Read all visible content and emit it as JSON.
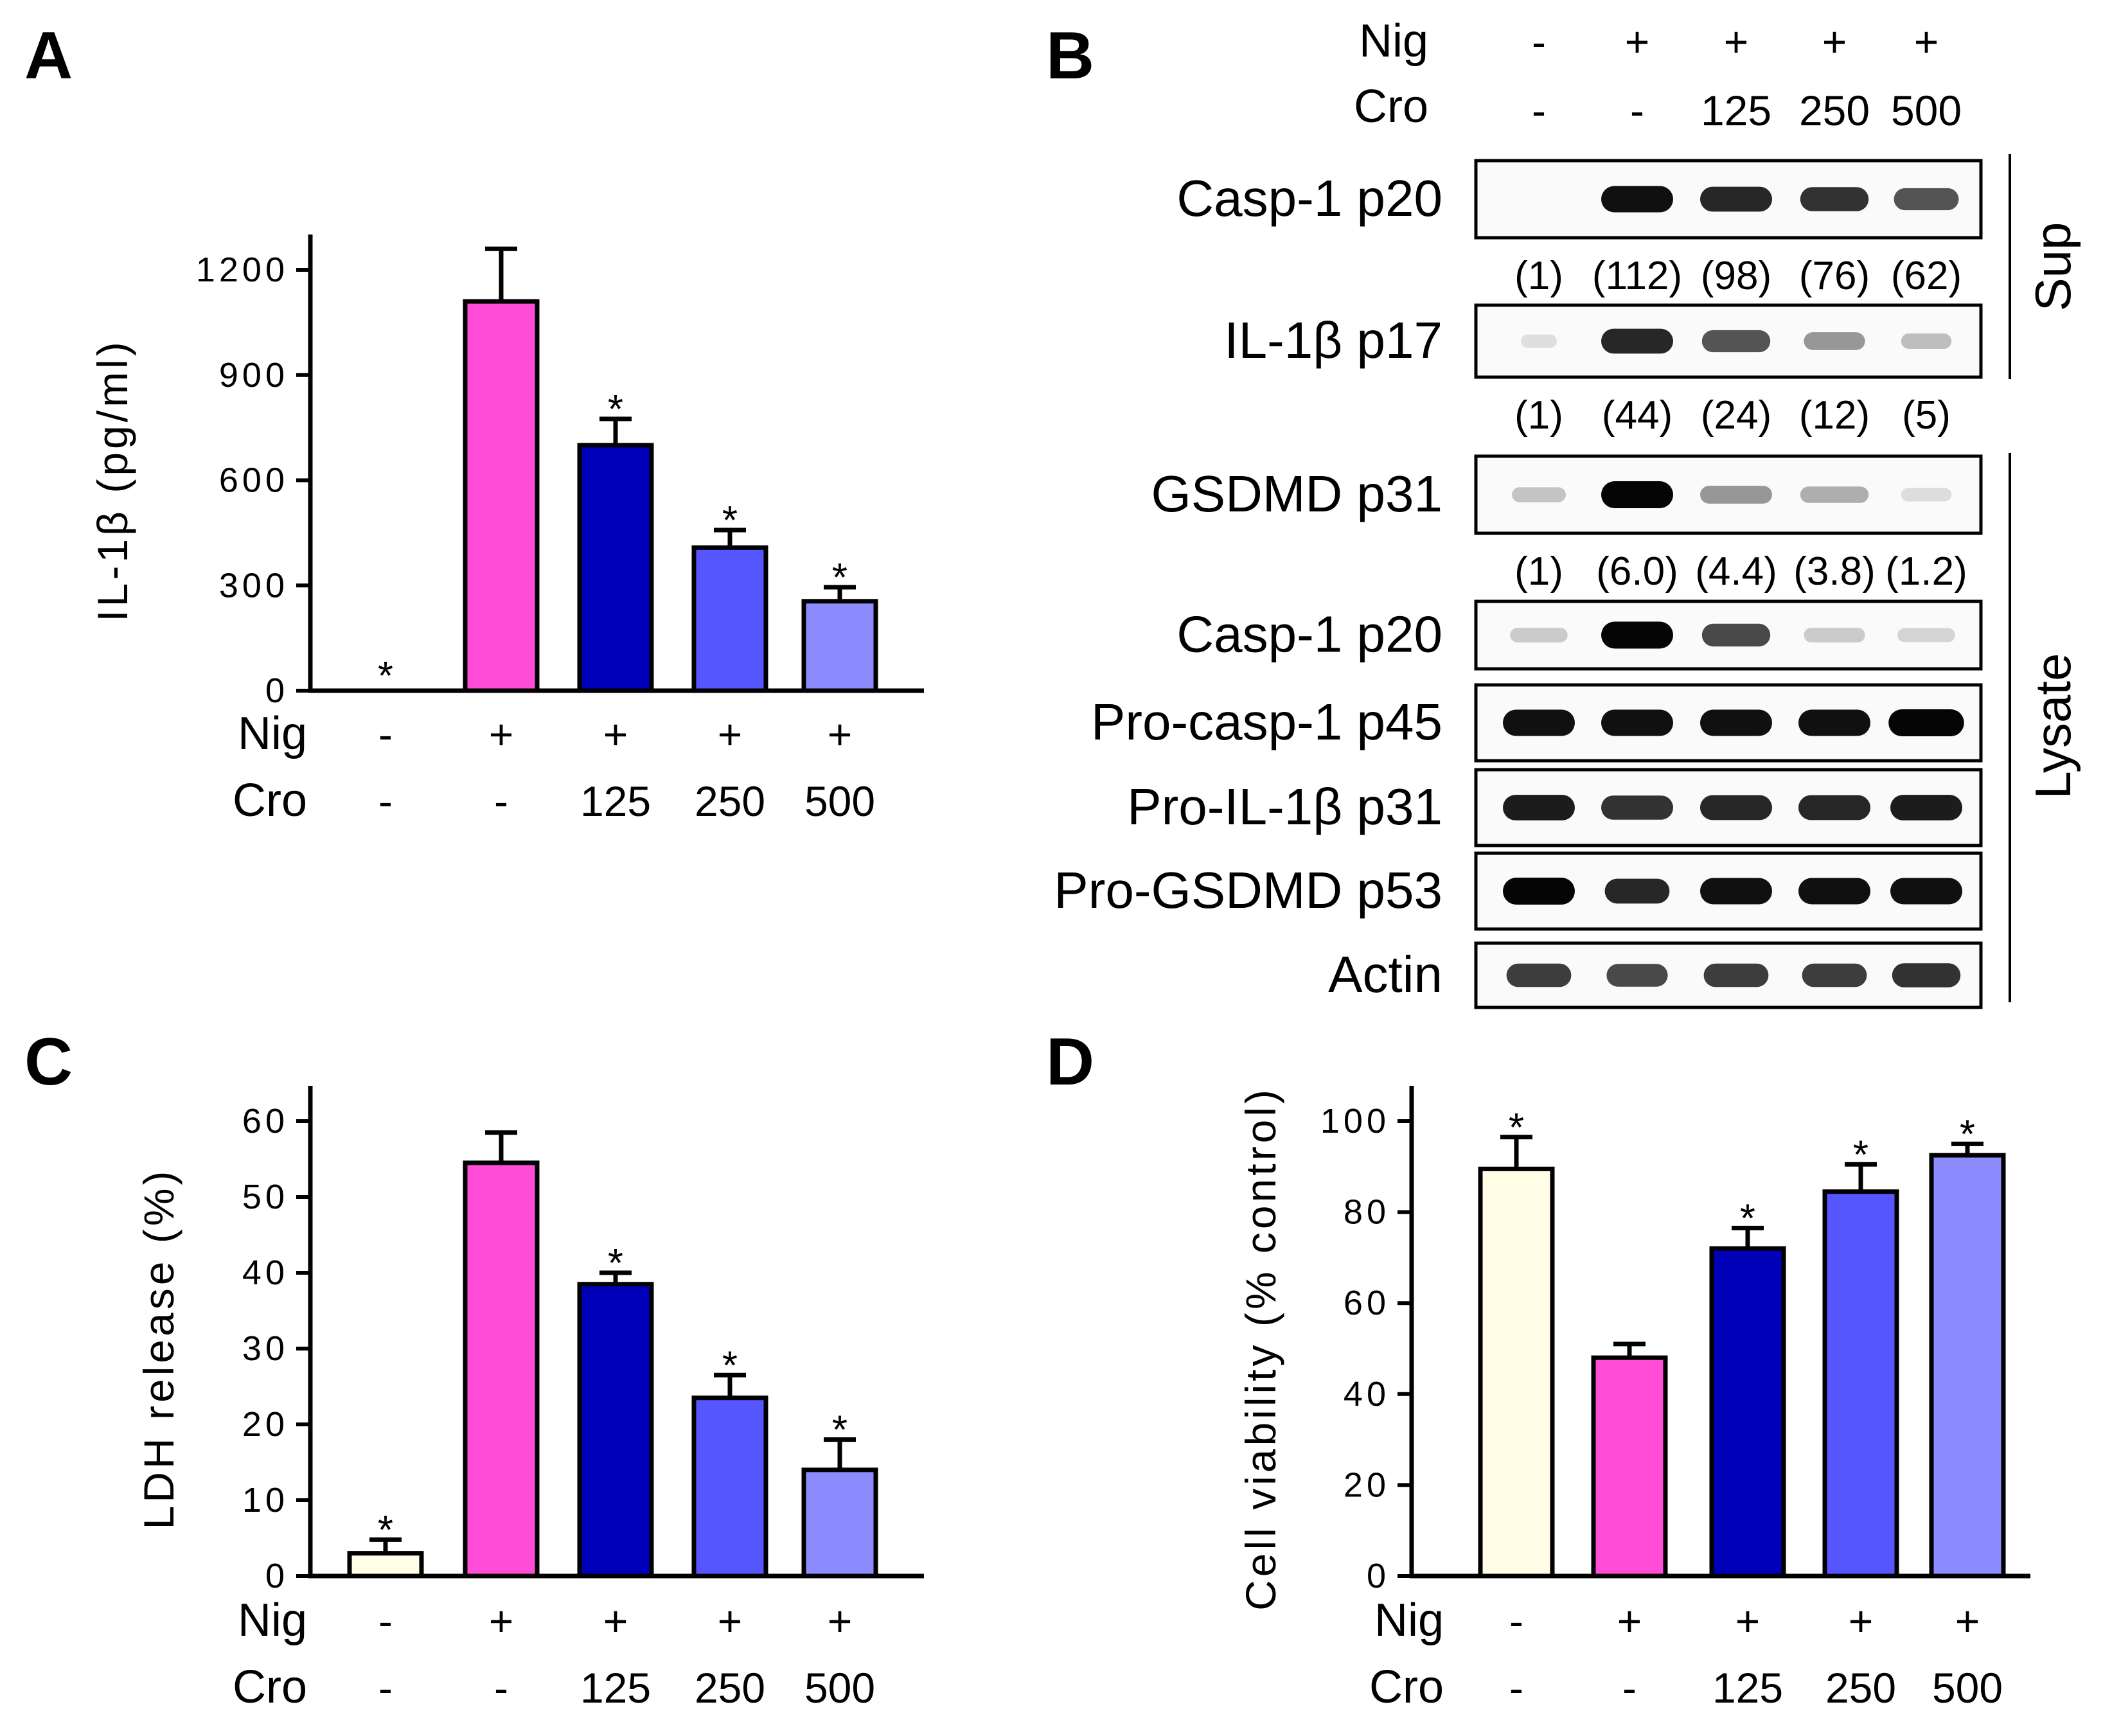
{
  "panel_labels": {
    "a": "A",
    "b": "B",
    "c": "C",
    "d": "D"
  },
  "treatments": {
    "nig_label": "Nig",
    "cro_label": "Cro",
    "nig": [
      "-",
      "+",
      "+",
      "+",
      "+"
    ],
    "cro": [
      "-",
      "-",
      "125",
      "250",
      "500"
    ]
  },
  "bar_colors": [
    "#fffde6",
    "#ff4dd8",
    "#0000b8",
    "#5656ff",
    "#8c8cff"
  ],
  "significance_mark": "*",
  "chart_data": [
    {
      "panel": "A",
      "type": "bar",
      "ylabel": "IL-1β (pg/ml)",
      "ylim": [
        0,
        1200
      ],
      "yticks": [
        0,
        300,
        600,
        900,
        1200
      ],
      "values": [
        0,
        1110,
        700,
        408,
        255
      ],
      "errors": [
        0,
        150,
        75,
        50,
        40
      ],
      "significant": [
        true,
        false,
        true,
        true,
        true
      ]
    },
    {
      "panel": "C",
      "type": "bar",
      "ylabel": "LDH release (%)",
      "ylim": [
        0,
        60
      ],
      "yticks": [
        0,
        10,
        20,
        30,
        40,
        50,
        60
      ],
      "values": [
        3,
        54.5,
        38.5,
        23.5,
        14
      ],
      "errors": [
        1.8,
        4,
        1.5,
        3,
        4
      ],
      "significant": [
        true,
        false,
        true,
        true,
        true
      ]
    },
    {
      "panel": "D",
      "type": "bar",
      "ylabel": "Cell viability (% control)",
      "ylim": [
        0,
        100
      ],
      "yticks": [
        0,
        20,
        40,
        60,
        80,
        100
      ],
      "values": [
        89.5,
        48,
        72,
        84.5,
        92.5
      ],
      "errors": [
        7,
        3,
        4.5,
        6,
        2.5
      ],
      "significant": [
        true,
        false,
        true,
        true,
        true
      ]
    }
  ],
  "western_blot": {
    "group_sup": "Sup",
    "group_lysate": "Lysate",
    "rows": [
      {
        "label": "Casp-1 p20",
        "group": "sup",
        "intensity": [
          0,
          0.95,
          0.85,
          0.8,
          0.65
        ],
        "band_width": [
          0,
          1,
          1,
          0.95,
          0.9
        ],
        "quant": [
          "(1)",
          "(112)",
          "(98)",
          "(76)",
          "(62)"
        ]
      },
      {
        "label": "IL-1β p17",
        "group": "sup",
        "intensity": [
          0.03,
          0.85,
          0.65,
          0.35,
          0.18
        ],
        "band_width": [
          0.5,
          1,
          0.95,
          0.85,
          0.7
        ],
        "quant": [
          "(1)",
          "(44)",
          "(24)",
          "(12)",
          "(5)"
        ]
      },
      {
        "label": "GSDMD p31",
        "group": "lysate",
        "intensity": [
          0.15,
          1.0,
          0.35,
          0.25,
          0.04
        ],
        "band_width": [
          0.75,
          1,
          1,
          0.95,
          0.7
        ],
        "quant": [
          "(1)",
          "(6.0)",
          "(4.4)",
          "(3.8)",
          "(1.2)"
        ]
      },
      {
        "label": "Casp-1 p20",
        "group": "lysate",
        "intensity": [
          0.12,
          1.0,
          0.7,
          0.12,
          0.08
        ],
        "band_width": [
          0.8,
          1,
          0.95,
          0.85,
          0.8
        ],
        "quant": []
      },
      {
        "label": "Pro-casp-1 p45",
        "group": "lysate",
        "intensity": [
          0.95,
          0.95,
          0.95,
          0.95,
          1.0
        ],
        "band_width": [
          1,
          1,
          1,
          1,
          1.05
        ],
        "quant": []
      },
      {
        "label": "Pro-IL-1β p31",
        "group": "lysate",
        "intensity": [
          0.9,
          0.8,
          0.85,
          0.85,
          0.9
        ],
        "band_width": [
          1,
          1,
          1,
          1,
          1
        ],
        "quant": []
      },
      {
        "label": "Pro-GSDMD p53",
        "group": "lysate",
        "intensity": [
          1.0,
          0.85,
          0.95,
          0.95,
          0.95
        ],
        "band_width": [
          1,
          0.9,
          1,
          1,
          1
        ],
        "quant": []
      },
      {
        "label": "Actin",
        "group": "lysate",
        "intensity": [
          0.75,
          0.7,
          0.75,
          0.75,
          0.8
        ],
        "band_width": [
          0.9,
          0.85,
          0.9,
          0.9,
          0.95
        ],
        "quant": []
      }
    ]
  }
}
